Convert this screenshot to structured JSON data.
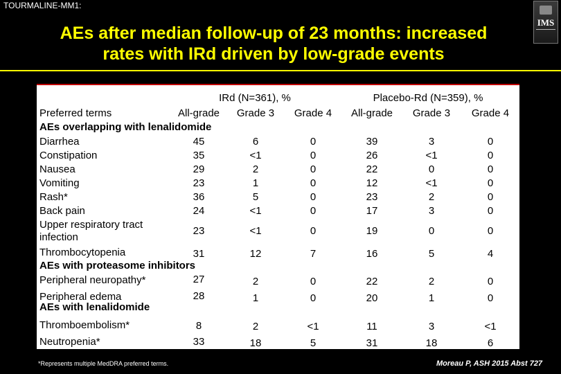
{
  "header": {
    "label": "TOURMALINE-MM1:"
  },
  "logo": {
    "text": "IMS"
  },
  "title": {
    "line1": "AEs after median follow-up of 23 months: increased",
    "line2": "rates with IRd driven by low-grade events"
  },
  "table": {
    "group_irdi": "IRd (N=361), %",
    "group_placebo": "Placebo-Rd (N=359), %",
    "col_terms": "Preferred terms",
    "col_headers": [
      "All-grade",
      "Grade 3",
      "Grade 4",
      "All-grade",
      "Grade 3",
      "Grade 4"
    ],
    "sections": [
      {
        "title": "AEs overlapping with lenalidomide",
        "rows": [
          {
            "label": [
              "Diarrhea"
            ],
            "values": [
              "45",
              "6",
              "0",
              "39",
              "3",
              "0"
            ]
          },
          {
            "label": [
              "Constipation"
            ],
            "values": [
              "35",
              "<1",
              "0",
              "26",
              "<1",
              "0"
            ]
          },
          {
            "label": [
              "Nausea"
            ],
            "values": [
              "29",
              "2",
              "0",
              "22",
              "0",
              "0"
            ]
          },
          {
            "label": [
              "Vomiting"
            ],
            "values": [
              "23",
              "1",
              "0",
              "12",
              "<1",
              "0"
            ]
          },
          {
            "label": [
              "Rash*"
            ],
            "values": [
              "36",
              "5",
              "0",
              "23",
              "2",
              "0"
            ]
          },
          {
            "label": [
              "Back pain"
            ],
            "values": [
              "24",
              "<1",
              "0",
              "17",
              "3",
              "0"
            ]
          },
          {
            "label": [
              "Upper respiratory tract",
              "infection"
            ],
            "values": [
              "23",
              "<1",
              "0",
              "19",
              "0",
              "0"
            ]
          },
          {
            "label": [
              "Thrombocytopenia"
            ],
            "values": [
              "31",
              "12",
              "7",
              "16",
              "5",
              "4"
            ]
          }
        ]
      },
      {
        "title": "AEs with proteasome inhibitors",
        "rows": [
          {
            "label": [
              "Peripheral neuropathy*"
            ],
            "values": [
              "27",
              "2",
              "0",
              "22",
              "2",
              "0"
            ]
          },
          {
            "label": [
              "Peripheral edema"
            ],
            "values": [
              "28",
              "1",
              "0",
              "20",
              "1",
              "0"
            ]
          }
        ]
      },
      {
        "title": "AEs with lenalidomide",
        "rows": [
          {
            "label": [
              "Thromboembolism*"
            ],
            "values": [
              "8",
              "2",
              "<1",
              "11",
              "3",
              "<1"
            ]
          },
          {
            "label": [
              "Neutropenia*"
            ],
            "values": [
              "33",
              "18",
              "5",
              "31",
              "18",
              "6"
            ]
          }
        ]
      }
    ]
  },
  "footnote": "*Represents multiple MedDRA preferred terms.",
  "citation": "Moreau P, ASH 2015 Abst 727"
}
